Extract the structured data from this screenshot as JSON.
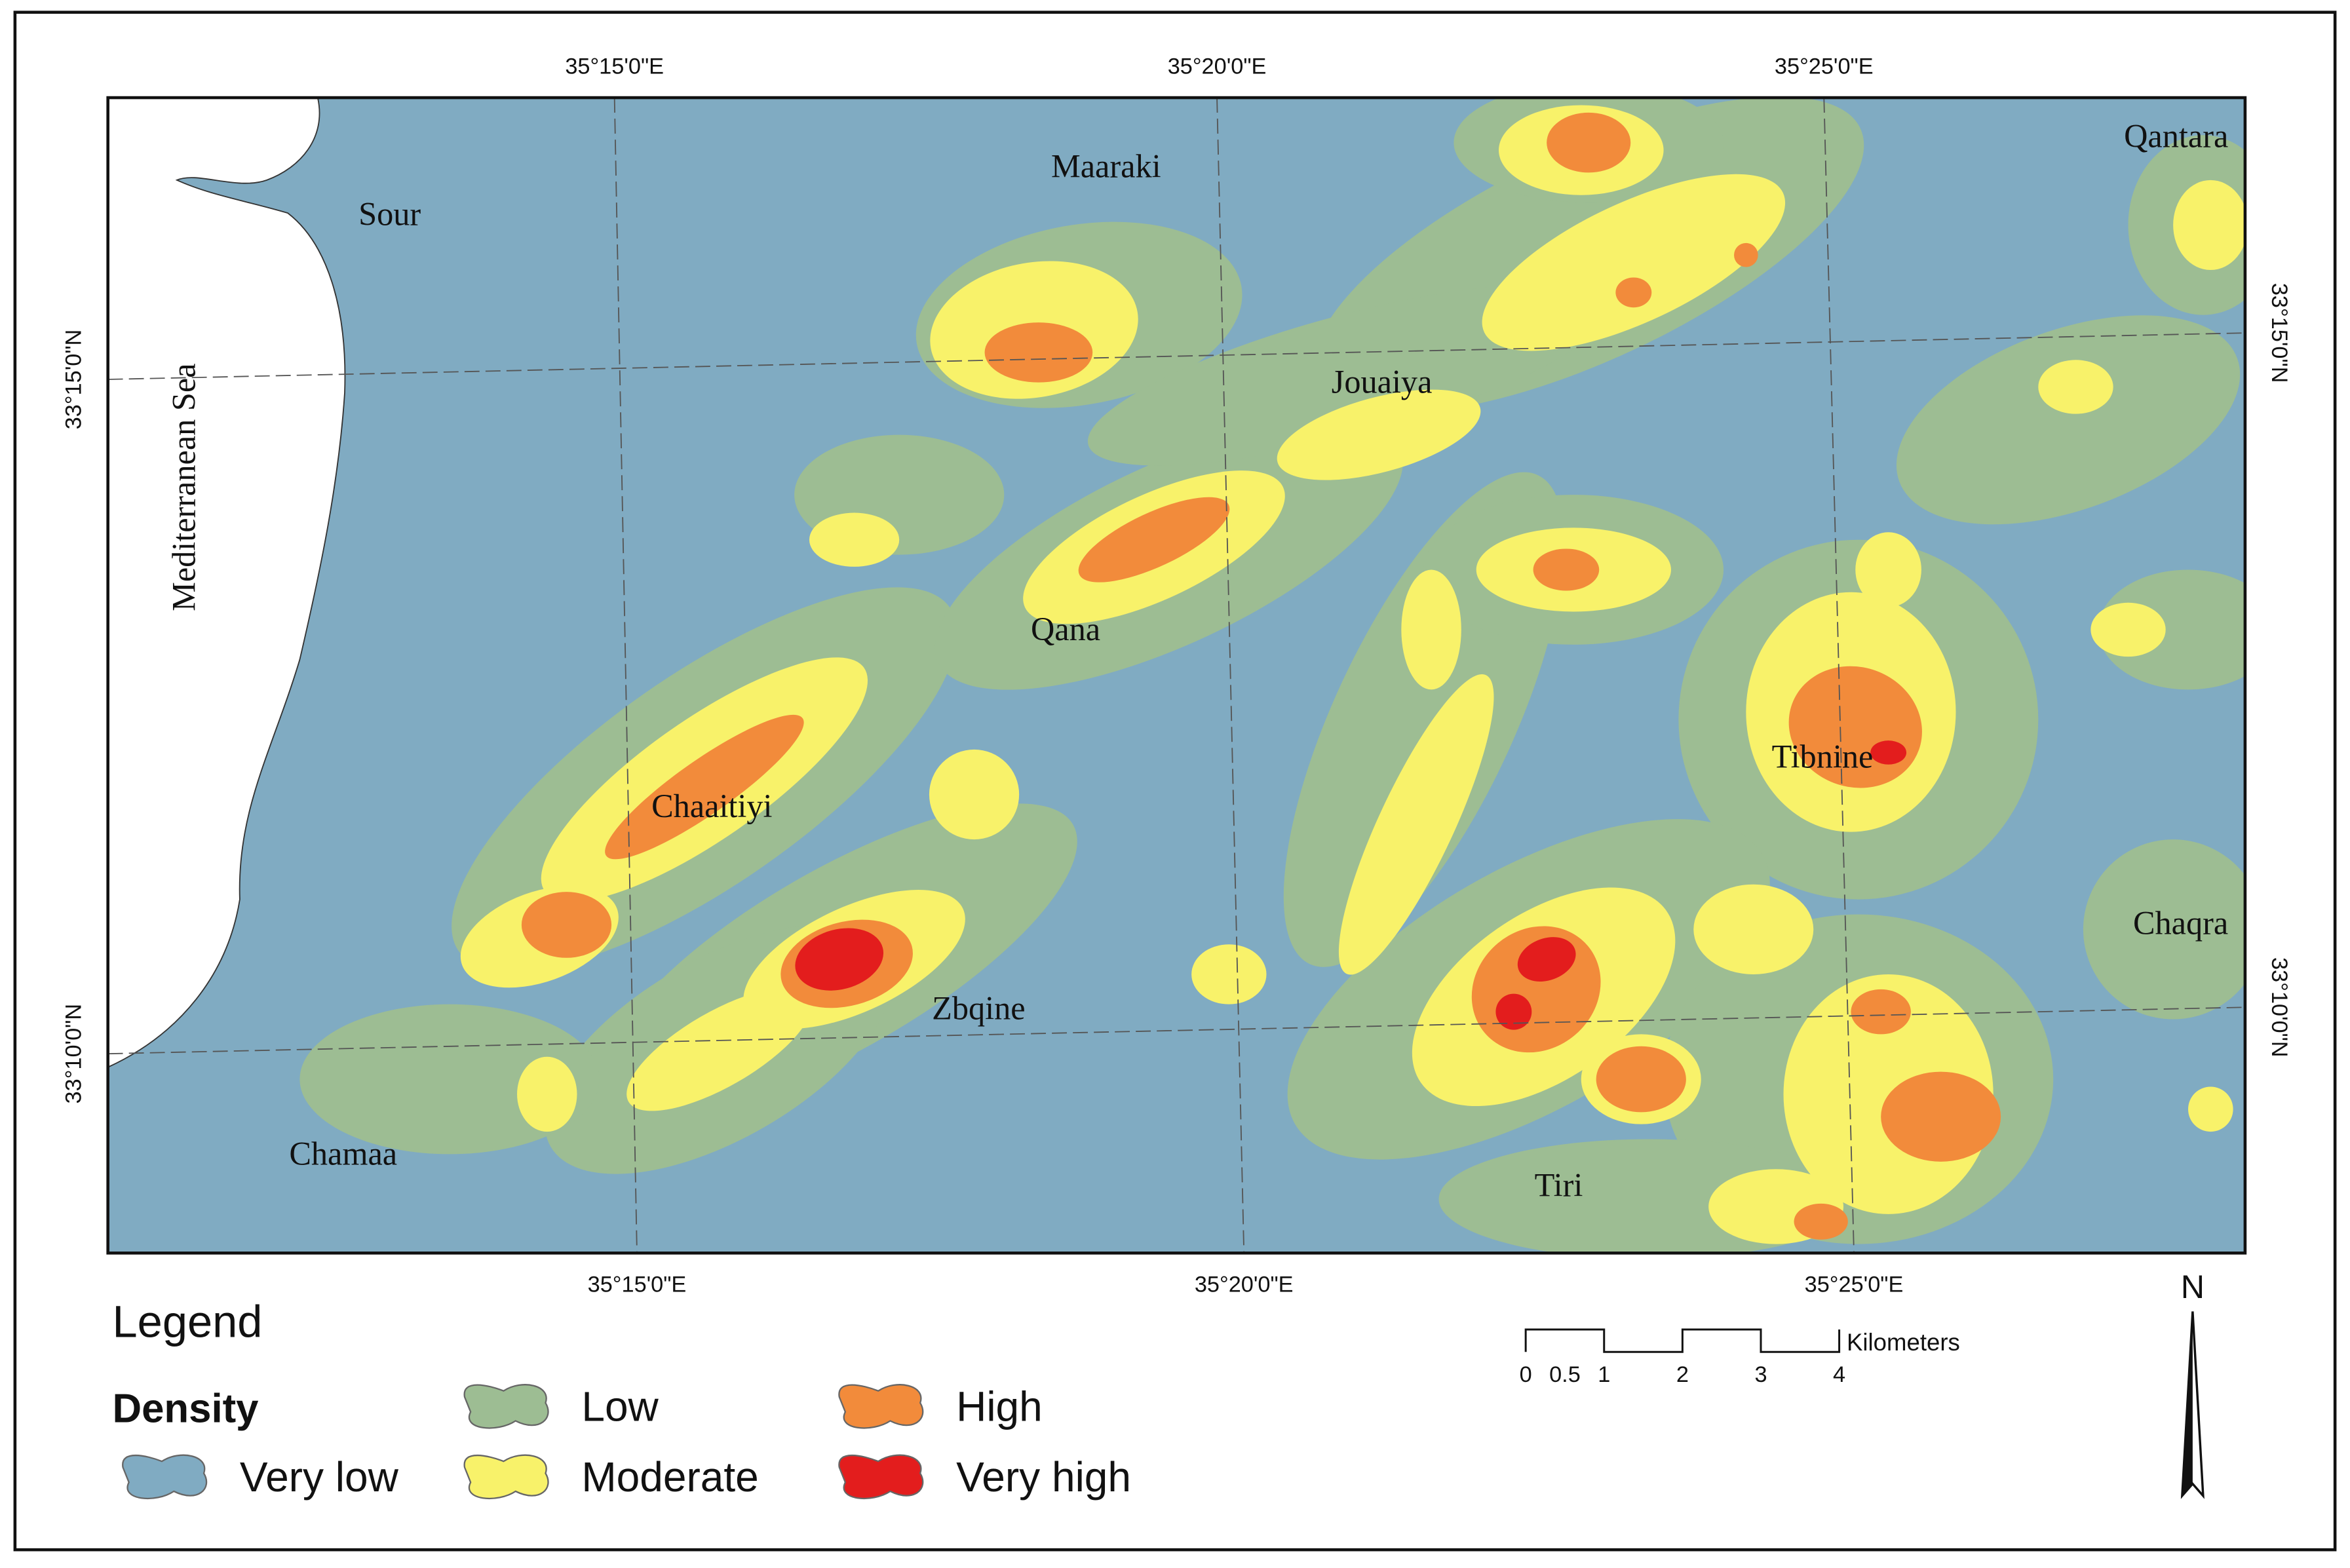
{
  "sea_label": "Mediterranean Sea",
  "places": [
    "Sour",
    "Maaraki",
    "Qantara",
    "Jouaiya",
    "Qana",
    "Tibnine",
    "Chaaitiyi",
    "Chaqra",
    "Zbqine",
    "Chamaa",
    "Tiri"
  ],
  "graticule": {
    "top": [
      "35°15'0\"E",
      "35°20'0\"E",
      "35°25'0\"E"
    ],
    "bottom": [
      "35°15'0\"E",
      "35°20'0\"E",
      "35°25'0\"E"
    ],
    "left": [
      "33°15'0\"N",
      "33°10'0\"N"
    ],
    "right": [
      "33°15'0\"N",
      "33°10'0\"N"
    ]
  },
  "legend": {
    "title": "Legend",
    "heading": "Density",
    "classes": [
      {
        "label": "Very low",
        "color": "#80abc2"
      },
      {
        "label": "Low",
        "color": "#9dbd93"
      },
      {
        "label": "Moderate",
        "color": "#f8f26a"
      },
      {
        "label": "High",
        "color": "#f28b3b"
      },
      {
        "label": "Very high",
        "color": "#e31d1d"
      }
    ]
  },
  "scale_bar": {
    "unit": "Kilometers",
    "ticks": [
      0,
      0.5,
      1,
      2,
      3,
      4
    ]
  },
  "north": "N"
}
